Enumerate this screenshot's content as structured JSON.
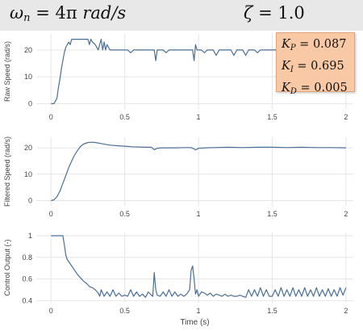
{
  "header": {
    "omega_symbol": "ω",
    "omega_sub": "n",
    "omega_value": "= 4π",
    "omega_unit": "rad/s",
    "zeta_symbol": "ζ",
    "zeta_value": "= 1.0"
  },
  "gains": {
    "kp_symbol": "K",
    "kp_sub": "P",
    "kp_value": " = 0.087",
    "ki_symbol": "K",
    "ki_sub": "I",
    "ki_value": " = 0.695",
    "kd_symbol": "K",
    "kd_sub": "D",
    "kd_value": " = 0.005"
  },
  "colors": {
    "line": "#4a6f96",
    "grid": "#e6e6e6",
    "axis_text": "#444444",
    "gains_bg": "#f8c9a4",
    "header_bg": "#e8e8e8"
  },
  "chart_data": [
    {
      "type": "line",
      "ylabel": "Raw Speed (rad/s)",
      "xlabel": "",
      "xlim": [
        -0.1,
        2.05
      ],
      "ylim": [
        -2,
        26
      ],
      "xticks": [
        0,
        0.5,
        1,
        1.5,
        2
      ],
      "xtick_labels": [
        "0",
        "0.5",
        "1",
        "1.5",
        "2"
      ],
      "yticks": [
        0,
        10,
        20
      ],
      "ytick_labels": [
        "0",
        "10",
        "20"
      ],
      "grid": true,
      "x": [
        0,
        0.02,
        0.04,
        0.05,
        0.06,
        0.07,
        0.08,
        0.09,
        0.1,
        0.11,
        0.12,
        0.13,
        0.14,
        0.15,
        0.16,
        0.17,
        0.18,
        0.2,
        0.22,
        0.24,
        0.25,
        0.26,
        0.27,
        0.28,
        0.3,
        0.32,
        0.34,
        0.35,
        0.36,
        0.37,
        0.38,
        0.4,
        0.42,
        0.44,
        0.46,
        0.48,
        0.5,
        0.52,
        0.54,
        0.56,
        0.58,
        0.6,
        0.62,
        0.64,
        0.66,
        0.68,
        0.7,
        0.71,
        0.72,
        0.74,
        0.76,
        0.78,
        0.8,
        0.82,
        0.84,
        0.86,
        0.88,
        0.9,
        0.92,
        0.94,
        0.96,
        0.97,
        0.98,
        0.99,
        1.0,
        1.02,
        1.04,
        1.06,
        1.08,
        1.1,
        1.12,
        1.14,
        1.16,
        1.18,
        1.2,
        1.22,
        1.24,
        1.26,
        1.28,
        1.3,
        1.32,
        1.34,
        1.36,
        1.38,
        1.4,
        1.42,
        1.44,
        1.46,
        1.48,
        1.5,
        1.52,
        1.54,
        1.56,
        1.58,
        1.6,
        1.62,
        1.64,
        1.66,
        1.68,
        1.7,
        1.72,
        1.74,
        1.76,
        1.78,
        1.8,
        1.82,
        1.84,
        1.86,
        1.88,
        1.9,
        1.92,
        1.94,
        1.96,
        1.98,
        2.0
      ],
      "y": [
        0,
        0,
        2,
        6,
        9,
        13,
        16,
        19,
        21,
        22,
        23,
        22,
        24,
        24,
        24,
        24,
        24,
        24,
        24,
        24,
        24,
        22,
        24,
        23,
        22,
        20,
        24,
        20,
        23,
        20,
        22,
        20,
        20,
        20,
        20,
        20,
        20,
        20,
        19,
        20,
        20,
        20,
        20,
        20,
        20,
        20,
        20,
        16,
        20,
        20,
        20,
        19,
        20,
        20,
        20,
        20,
        20,
        20,
        20,
        20,
        20,
        16,
        22,
        20,
        20,
        20,
        19,
        20,
        20,
        20,
        18,
        20,
        20,
        20,
        20,
        20,
        18,
        20,
        20,
        20,
        18,
        20,
        20,
        20,
        19,
        20,
        20,
        20,
        20,
        20,
        20,
        20,
        20,
        20,
        20,
        20,
        20,
        18,
        20,
        20,
        20,
        20,
        18,
        20,
        20,
        20,
        18,
        20,
        20,
        20,
        20,
        20,
        20,
        20,
        20
      ]
    },
    {
      "type": "line",
      "ylabel": "Filtered Speed (rad/s)",
      "xlabel": "",
      "xlim": [
        -0.1,
        2.05
      ],
      "ylim": [
        -2,
        24
      ],
      "xticks": [
        0,
        0.5,
        1,
        1.5,
        2
      ],
      "xtick_labels": [
        "0",
        "0.5",
        "1",
        "1.5",
        "2"
      ],
      "yticks": [
        0,
        10,
        20
      ],
      "ytick_labels": [
        "0",
        "10",
        "20"
      ],
      "grid": true,
      "x": [
        0,
        0.02,
        0.04,
        0.06,
        0.08,
        0.1,
        0.12,
        0.14,
        0.16,
        0.18,
        0.2,
        0.22,
        0.25,
        0.28,
        0.3,
        0.35,
        0.4,
        0.45,
        0.5,
        0.55,
        0.6,
        0.65,
        0.68,
        0.7,
        0.72,
        0.75,
        0.8,
        0.85,
        0.9,
        0.95,
        0.97,
        0.98,
        1.0,
        1.05,
        1.1,
        1.2,
        1.3,
        1.4,
        1.5,
        1.6,
        1.7,
        1.8,
        1.9,
        2.0
      ],
      "y": [
        0,
        0.3,
        1.5,
        3.5,
        6.5,
        9.5,
        12.5,
        15,
        17.3,
        19,
        20.5,
        21.4,
        22,
        22.1,
        22,
        21.5,
        21,
        20.8,
        20.6,
        20.4,
        20.3,
        20.2,
        20.2,
        19.3,
        19.8,
        20,
        20,
        20,
        20.1,
        20.1,
        19.6,
        19.2,
        19.8,
        20,
        20.1,
        20.2,
        20.1,
        20.2,
        20.2,
        20.1,
        20.2,
        20.1,
        20.1,
        20
      ]
    },
    {
      "type": "line",
      "ylabel": "Control Output (-)",
      "xlabel": "Time (s)",
      "xlim": [
        -0.1,
        2.05
      ],
      "ylim": [
        0.38,
        1.03
      ],
      "xticks": [
        0,
        0.5,
        1,
        1.5,
        2
      ],
      "xtick_labels": [
        "0",
        "0.5",
        "1",
        "1.5",
        "2"
      ],
      "yticks": [
        0.4,
        0.6,
        0.8,
        1
      ],
      "ytick_labels": [
        "0.4",
        "0.6",
        "0.8",
        "1"
      ],
      "grid": true,
      "x": [
        0,
        0.04,
        0.08,
        0.09,
        0.1,
        0.11,
        0.12,
        0.14,
        0.16,
        0.18,
        0.2,
        0.22,
        0.24,
        0.26,
        0.28,
        0.3,
        0.32,
        0.33,
        0.34,
        0.36,
        0.38,
        0.4,
        0.42,
        0.44,
        0.46,
        0.48,
        0.5,
        0.52,
        0.54,
        0.56,
        0.58,
        0.6,
        0.62,
        0.64,
        0.66,
        0.68,
        0.69,
        0.7,
        0.71,
        0.72,
        0.74,
        0.76,
        0.78,
        0.8,
        0.82,
        0.84,
        0.86,
        0.88,
        0.9,
        0.92,
        0.94,
        0.95,
        0.96,
        0.97,
        0.98,
        0.99,
        1.0,
        1.02,
        1.04,
        1.06,
        1.08,
        1.1,
        1.12,
        1.14,
        1.16,
        1.18,
        1.2,
        1.22,
        1.24,
        1.26,
        1.28,
        1.3,
        1.32,
        1.34,
        1.36,
        1.38,
        1.4,
        1.42,
        1.44,
        1.46,
        1.48,
        1.5,
        1.52,
        1.54,
        1.56,
        1.58,
        1.6,
        1.62,
        1.64,
        1.66,
        1.68,
        1.7,
        1.72,
        1.74,
        1.76,
        1.78,
        1.8,
        1.82,
        1.84,
        1.86,
        1.88,
        1.9,
        1.92,
        1.94,
        1.96,
        1.98,
        2.0
      ],
      "y": [
        1,
        1,
        1,
        0.92,
        0.82,
        0.78,
        0.76,
        0.72,
        0.68,
        0.64,
        0.61,
        0.58,
        0.56,
        0.53,
        0.52,
        0.5,
        0.47,
        0.44,
        0.5,
        0.44,
        0.48,
        0.44,
        0.5,
        0.44,
        0.47,
        0.44,
        0.45,
        0.44,
        0.5,
        0.44,
        0.48,
        0.44,
        0.46,
        0.43,
        0.48,
        0.45,
        0.44,
        0.66,
        0.5,
        0.45,
        0.44,
        0.48,
        0.44,
        0.5,
        0.44,
        0.48,
        0.44,
        0.46,
        0.44,
        0.46,
        0.5,
        0.68,
        0.72,
        0.6,
        0.46,
        0.5,
        0.44,
        0.48,
        0.47,
        0.45,
        0.47,
        0.44,
        0.46,
        0.45,
        0.44,
        0.46,
        0.44,
        0.45,
        0.44,
        0.44,
        0.45,
        0.44,
        0.43,
        0.5,
        0.44,
        0.5,
        0.44,
        0.52,
        0.44,
        0.5,
        0.44,
        0.44,
        0.5,
        0.44,
        0.52,
        0.44,
        0.5,
        0.44,
        0.52,
        0.44,
        0.5,
        0.44,
        0.52,
        0.44,
        0.5,
        0.44,
        0.52,
        0.44,
        0.5,
        0.44,
        0.51,
        0.44,
        0.5,
        0.44,
        0.52,
        0.45,
        0.52
      ]
    }
  ]
}
